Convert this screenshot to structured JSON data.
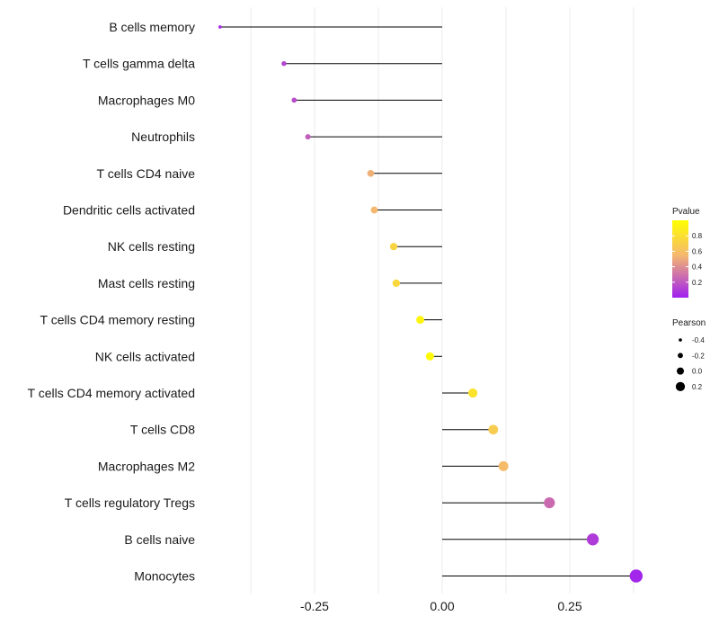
{
  "chart_data": {
    "type": "lollipop",
    "categories": [
      "B cells memory",
      "T cells gamma delta",
      "Macrophages M0",
      "Neutrophils",
      "T cells CD4 naive",
      "Dendritic cells activated",
      "NK cells resting",
      "Mast cells resting",
      "T cells CD4 memory resting",
      "NK cells activated",
      "T cells CD4 memory activated",
      "T cells CD8",
      "Macrophages M2",
      "T cells regulatory  Tregs ",
      "B cells naive",
      "Monocytes"
    ],
    "pearson": [
      -0.435,
      -0.31,
      -0.29,
      -0.263,
      -0.14,
      -0.133,
      -0.095,
      -0.09,
      -0.043,
      -0.024,
      0.06,
      0.1,
      0.12,
      0.21,
      0.295,
      0.38
    ],
    "pvalue": [
      0.05,
      0.13,
      0.16,
      0.22,
      0.52,
      0.55,
      0.73,
      0.75,
      0.93,
      0.97,
      0.82,
      0.67,
      0.57,
      0.27,
      0.1,
      0.02
    ],
    "xlim": [
      -0.52,
      0.42
    ],
    "x_ticks": [
      -0.25,
      0.0,
      0.25
    ],
    "x_tick_labels": [
      "-0.25",
      "0.00",
      "0.25"
    ],
    "xlabel": "",
    "ylabel": "",
    "grid": true,
    "legend_color": {
      "title": "Pvalue",
      "ticks": [
        0.8,
        0.6,
        0.4,
        0.2
      ],
      "tick_labels": [
        "0.8",
        "0.6",
        "0.4",
        "0.2"
      ],
      "range": [
        0.0,
        1.0
      ],
      "colors": [
        "#a020f0",
        "#f5b86e",
        "#ffff00"
      ]
    },
    "legend_size": {
      "title": "Pearson",
      "values": [
        -0.4,
        -0.2,
        0.0,
        0.2
      ],
      "labels": [
        "-0.4",
        "-0.2",
        "0.0",
        "0.2"
      ]
    }
  }
}
